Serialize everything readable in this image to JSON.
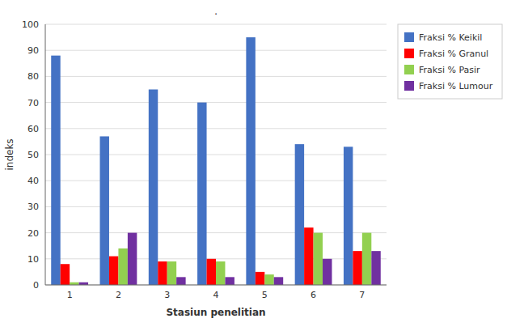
{
  "chart_data": {
    "type": "bar",
    "title": ".",
    "xlabel": "Stasiun penelitian",
    "ylabel": "indeks",
    "categories": [
      "1",
      "2",
      "3",
      "4",
      "5",
      "6",
      "7"
    ],
    "series": [
      {
        "name": "Fraksi % Keikil",
        "color": "#4472C4",
        "values": [
          88,
          57,
          75,
          70,
          95,
          54,
          53
        ]
      },
      {
        "name": "Fraksi % Granul",
        "color": "#FF0000",
        "values": [
          8,
          11,
          9,
          10,
          5,
          22,
          13
        ]
      },
      {
        "name": "Fraksi % Pasir",
        "color": "#92D050",
        "values": [
          1,
          14,
          9,
          9,
          4,
          20,
          20
        ]
      },
      {
        "name": "Fraksi % Lumour",
        "color": "#7030A0",
        "values": [
          1,
          20,
          3,
          3,
          3,
          10,
          13
        ]
      }
    ],
    "ylim": [
      0,
      100
    ],
    "yticks": [
      0,
      10,
      20,
      30,
      40,
      50,
      60,
      70,
      80,
      90,
      100
    ],
    "grid": true,
    "legend": "upper right"
  }
}
